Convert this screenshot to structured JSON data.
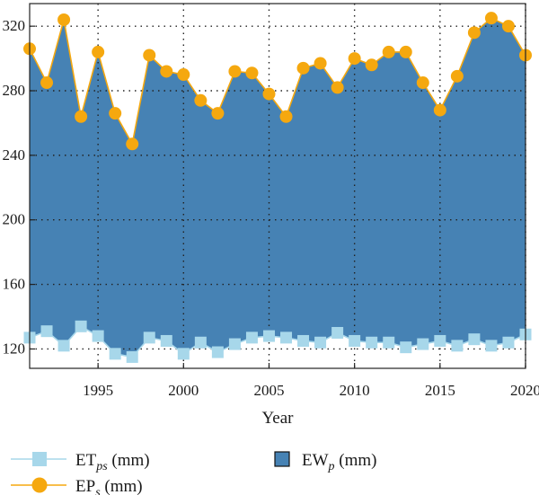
{
  "chart_data": {
    "type": "area",
    "xlabel": "Year",
    "ylabel": "",
    "xlim": [
      1991,
      2020
    ],
    "ylim": [
      108,
      334
    ],
    "x_ticks": [
      1995,
      2000,
      2005,
      2010,
      2015,
      2020
    ],
    "y_ticks": [
      120,
      160,
      200,
      240,
      280,
      320
    ],
    "grid": true,
    "legend_position": "bottom",
    "x": [
      1991,
      1992,
      1993,
      1994,
      1995,
      1996,
      1997,
      1998,
      1999,
      2000,
      2001,
      2002,
      2003,
      2004,
      2005,
      2006,
      2007,
      2008,
      2009,
      2010,
      2011,
      2012,
      2013,
      2014,
      2015,
      2016,
      2017,
      2018,
      2019,
      2020
    ],
    "series": [
      {
        "name_base": "EP",
        "name_sub": "s",
        "unit": " (mm)",
        "marker": "circle",
        "color": "#f5a80f",
        "values": [
          306,
          285,
          324,
          264,
          304,
          266,
          247,
          302,
          292,
          290,
          274,
          266,
          292,
          291,
          278,
          264,
          294,
          297,
          282,
          300,
          296,
          304,
          304,
          285,
          268,
          289,
          316,
          325,
          320,
          302
        ]
      },
      {
        "name_base": "ET",
        "name_sub": "ps",
        "unit": " (mm)",
        "marker": "square",
        "color": "#a7d7ea",
        "values": [
          127,
          131,
          122,
          134,
          128,
          117,
          115,
          127,
          125,
          117,
          124,
          118,
          123,
          127,
          128,
          127,
          125,
          124,
          130,
          125,
          124,
          124,
          121,
          123,
          125,
          122,
          126,
          122,
          124,
          129
        ]
      },
      {
        "name_base": "EW",
        "name_sub": "p",
        "unit": " (mm)",
        "marker": "filled-area",
        "color": "#4682b4"
      }
    ]
  }
}
